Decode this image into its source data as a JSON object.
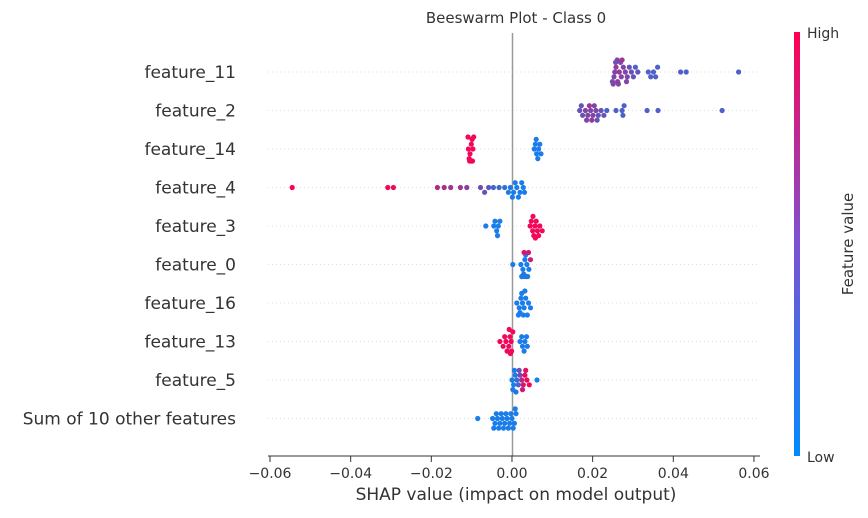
{
  "chart_data": {
    "type": "scatter",
    "subtype": "shap-beeswarm",
    "title": "Beeswarm Plot - Class 0",
    "xlabel": "SHAP value (impact on model output)",
    "ylabel": "",
    "xlim": [
      -0.0605,
      0.0615
    ],
    "xticks": [
      -0.06,
      -0.04,
      -0.02,
      0.0,
      0.02,
      0.04,
      0.06
    ],
    "xtick_labels": [
      "−0.06",
      "−0.04",
      "−0.02",
      "0.00",
      "0.02",
      "0.04",
      "0.06"
    ],
    "grid": false,
    "colorbar": {
      "label": "Feature value",
      "high_label": "High",
      "low_label": "Low",
      "high_color": "#ff0052",
      "low_color": "#008bfb"
    },
    "features": [
      {
        "name": "feature_11",
        "points": [
          [
            0.0255,
            0.5
          ],
          [
            0.0253,
            0.5
          ],
          [
            0.0258,
            0.6
          ],
          [
            0.0262,
            0.6
          ],
          [
            0.0266,
            0.6
          ],
          [
            0.0271,
            0.5
          ],
          [
            0.0276,
            0.5
          ],
          [
            0.0281,
            0.5
          ],
          [
            0.0249,
            0.4
          ],
          [
            0.0257,
            0.4
          ],
          [
            0.0264,
            0.5
          ],
          [
            0.0269,
            0.5
          ],
          [
            0.0286,
            0.5
          ],
          [
            0.0291,
            0.4
          ],
          [
            0.0296,
            0.4
          ],
          [
            0.0301,
            0.4
          ],
          [
            0.0306,
            0.3
          ],
          [
            0.0251,
            0.5
          ],
          [
            0.0261,
            0.5
          ],
          [
            0.0273,
            0.6
          ],
          [
            0.0338,
            0.3
          ],
          [
            0.0344,
            0.3
          ],
          [
            0.0351,
            0.3
          ],
          [
            0.0356,
            0.3
          ],
          [
            0.0361,
            0.3
          ],
          [
            0.0418,
            0.3
          ],
          [
            0.0432,
            0.3
          ],
          [
            0.0562,
            0.3
          ],
          [
            0.0312,
            0.4
          ],
          [
            0.0284,
            0.5
          ]
        ]
      },
      {
        "name": "feature_2",
        "points": [
          [
            0.0168,
            0.4
          ],
          [
            0.0175,
            0.4
          ],
          [
            0.0182,
            0.5
          ],
          [
            0.0188,
            0.5
          ],
          [
            0.0195,
            0.5
          ],
          [
            0.0201,
            0.5
          ],
          [
            0.0208,
            0.5
          ],
          [
            0.0214,
            0.4
          ],
          [
            0.0221,
            0.4
          ],
          [
            0.0228,
            0.4
          ],
          [
            0.0192,
            0.6
          ],
          [
            0.0198,
            0.6
          ],
          [
            0.0185,
            0.5
          ],
          [
            0.0204,
            0.5
          ],
          [
            0.0235,
            0.3
          ],
          [
            0.0258,
            0.3
          ],
          [
            0.0273,
            0.3
          ],
          [
            0.0275,
            0.3
          ],
          [
            0.0278,
            0.3
          ],
          [
            0.0335,
            0.3
          ],
          [
            0.0362,
            0.3
          ],
          [
            0.0521,
            0.3
          ],
          [
            0.0172,
            0.4
          ],
          [
            0.0211,
            0.4
          ]
        ]
      },
      {
        "name": "feature_14",
        "points": [
          [
            -0.0108,
            0.95
          ],
          [
            -0.0104,
            0.95
          ],
          [
            -0.0101,
            0.95
          ],
          [
            -0.0097,
            0.95
          ],
          [
            -0.0106,
            0.95
          ],
          [
            -0.0099,
            0.95
          ],
          [
            -0.0103,
            0.95
          ],
          [
            -0.0095,
            0.95
          ],
          [
            -0.0109,
            0.95
          ],
          [
            -0.01,
            0.95
          ],
          [
            -0.0102,
            0.95
          ],
          [
            -0.0105,
            0.95
          ],
          [
            -0.0098,
            0.95
          ],
          [
            0.0055,
            0.1
          ],
          [
            0.0061,
            0.1
          ],
          [
            0.0066,
            0.1
          ],
          [
            0.0072,
            0.1
          ],
          [
            0.0058,
            0.1
          ],
          [
            0.0064,
            0.1
          ],
          [
            0.0069,
            0.1
          ],
          [
            0.006,
            0.1
          ]
        ]
      },
      {
        "name": "feature_4",
        "points": [
          [
            -0.0545,
            0.98
          ],
          [
            -0.0308,
            0.95
          ],
          [
            -0.0294,
            0.93
          ],
          [
            -0.0185,
            0.7
          ],
          [
            -0.0168,
            0.65
          ],
          [
            -0.0152,
            0.62
          ],
          [
            -0.0128,
            0.6
          ],
          [
            -0.0112,
            0.55
          ],
          [
            -0.0078,
            0.45
          ],
          [
            -0.0068,
            0.4
          ],
          [
            -0.0058,
            0.35
          ],
          [
            -0.0046,
            0.3
          ],
          [
            -0.0032,
            0.25
          ],
          [
            -0.0018,
            0.2
          ],
          [
            -0.0004,
            0.15
          ],
          [
            0.0004,
            0.1
          ],
          [
            0.0012,
            0.1
          ],
          [
            0.002,
            0.1
          ],
          [
            0.0028,
            0.1
          ],
          [
            0.0008,
            0.1
          ],
          [
            0.0016,
            0.1
          ],
          [
            0.0024,
            0.1
          ],
          [
            -0.0009,
            0.12
          ],
          [
            0.0001,
            0.1
          ],
          [
            0.0031,
            0.1
          ]
        ]
      },
      {
        "name": "feature_3",
        "points": [
          [
            -0.0065,
            0.1
          ],
          [
            -0.0045,
            0.1
          ],
          [
            -0.0038,
            0.1
          ],
          [
            -0.0034,
            0.1
          ],
          [
            -0.003,
            0.1
          ],
          [
            -0.0042,
            0.1
          ],
          [
            -0.0036,
            0.1
          ],
          [
            0.0045,
            0.95
          ],
          [
            0.0051,
            0.95
          ],
          [
            0.0057,
            0.95
          ],
          [
            0.0063,
            0.95
          ],
          [
            0.0069,
            0.95
          ],
          [
            0.0075,
            0.95
          ],
          [
            0.0048,
            0.95
          ],
          [
            0.0054,
            0.95
          ],
          [
            0.006,
            0.95
          ],
          [
            0.0066,
            0.95
          ],
          [
            0.0052,
            0.95
          ],
          [
            0.0058,
            0.95
          ]
        ]
      },
      {
        "name": "feature_0",
        "points": [
          [
            0.0002,
            0.1
          ],
          [
            0.0022,
            0.1
          ],
          [
            0.0027,
            0.1
          ],
          [
            0.0032,
            0.1
          ],
          [
            0.0037,
            0.1
          ],
          [
            0.0042,
            0.1
          ],
          [
            0.0029,
            0.1
          ],
          [
            0.0034,
            0.1
          ],
          [
            0.0025,
            0.9
          ],
          [
            0.003,
            0.88
          ],
          [
            0.0036,
            0.85
          ],
          [
            0.0041,
            0.8
          ],
          [
            0.0046,
            0.75
          ],
          [
            0.0039,
            0.1
          ],
          [
            0.0031,
            0.1
          ],
          [
            0.0024,
            0.1
          ]
        ]
      },
      {
        "name": "feature_16",
        "points": [
          [
            0.0012,
            0.1
          ],
          [
            0.0018,
            0.1
          ],
          [
            0.0022,
            0.1
          ],
          [
            0.0026,
            0.1
          ],
          [
            0.003,
            0.1
          ],
          [
            0.0034,
            0.1
          ],
          [
            0.0041,
            0.1
          ],
          [
            0.0046,
            0.1
          ],
          [
            0.002,
            0.1
          ],
          [
            0.0024,
            0.1
          ],
          [
            0.0028,
            0.1
          ],
          [
            0.0032,
            0.1
          ],
          [
            0.0016,
            0.1
          ],
          [
            0.0038,
            0.1
          ]
        ]
      },
      {
        "name": "feature_13",
        "points": [
          [
            -0.003,
            0.95
          ],
          [
            -0.0022,
            0.95
          ],
          [
            -0.0015,
            0.95
          ],
          [
            -0.0008,
            0.95
          ],
          [
            -0.0002,
            0.95
          ],
          [
            -0.0005,
            0.95
          ],
          [
            -0.0012,
            0.95
          ],
          [
            -0.0001,
            0.95
          ],
          [
            0.0002,
            0.95
          ],
          [
            -0.0004,
            0.95
          ],
          [
            -0.0018,
            0.95
          ],
          [
            -0.0007,
            0.95
          ],
          [
            0.002,
            0.1
          ],
          [
            0.0026,
            0.1
          ],
          [
            0.0032,
            0.1
          ],
          [
            0.0038,
            0.1
          ],
          [
            0.0024,
            0.1
          ],
          [
            0.003,
            0.1
          ],
          [
            0.0036,
            0.1
          ]
        ]
      },
      {
        "name": "feature_5",
        "points": [
          [
            0.0,
            0.1
          ],
          [
            0.0004,
            0.1
          ],
          [
            0.0008,
            0.1
          ],
          [
            0.0012,
            0.2
          ],
          [
            0.0016,
            0.3
          ],
          [
            0.002,
            0.5
          ],
          [
            0.0024,
            0.7
          ],
          [
            0.0028,
            0.85
          ],
          [
            0.0032,
            0.9
          ],
          [
            0.0037,
            0.95
          ],
          [
            0.0043,
            0.95
          ],
          [
            0.0062,
            0.1
          ],
          [
            0.0002,
            0.1
          ],
          [
            0.0006,
            0.1
          ],
          [
            0.001,
            0.15
          ],
          [
            0.0018,
            0.4
          ],
          [
            0.0026,
            0.8
          ],
          [
            0.0034,
            0.9
          ]
        ]
      },
      {
        "name": "Sum of 10 other features",
        "points": [
          [
            -0.0085,
            0.1
          ],
          [
            -0.0048,
            0.1
          ],
          [
            -0.0042,
            0.1
          ],
          [
            -0.0036,
            0.1
          ],
          [
            -0.003,
            0.1
          ],
          [
            -0.0024,
            0.1
          ],
          [
            -0.0018,
            0.1
          ],
          [
            -0.0012,
            0.1
          ],
          [
            -0.0006,
            0.1
          ],
          [
            0.0,
            0.1
          ],
          [
            0.0006,
            0.1
          ],
          [
            0.001,
            0.1
          ],
          [
            -0.0027,
            0.1
          ],
          [
            -0.0021,
            0.1
          ],
          [
            -0.0015,
            0.1
          ],
          [
            -0.0009,
            0.1
          ],
          [
            -0.0003,
            0.1
          ],
          [
            0.0003,
            0.1
          ],
          [
            -0.0033,
            0.1
          ],
          [
            -0.0039,
            0.1
          ],
          [
            0.0008,
            0.1
          ],
          [
            -0.0045,
            0.1
          ]
        ]
      }
    ]
  }
}
